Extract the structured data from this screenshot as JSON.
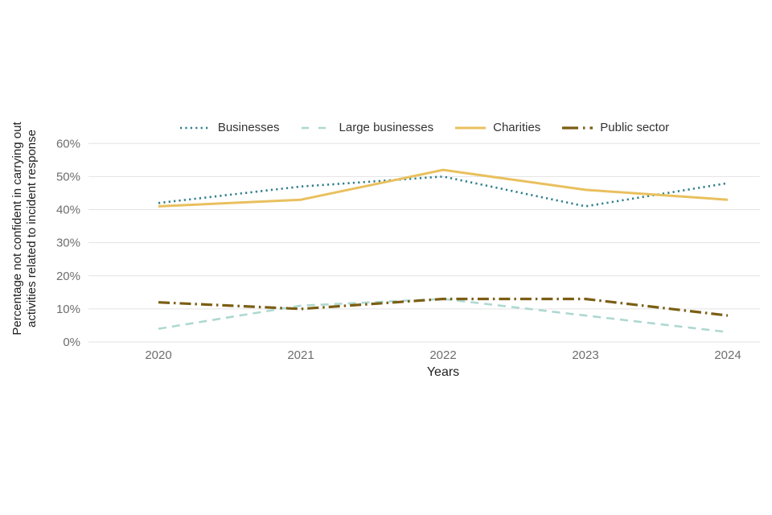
{
  "chart_data": {
    "type": "line",
    "xlabel": "Years",
    "ylabel": "Percentage not confident in carrying out activities related to incident response",
    "ylabel_lines": [
      "Percentage not confident in carrying out",
      "activities related to incident response"
    ],
    "x_categories": [
      "2020",
      "2021",
      "2022",
      "2023",
      "2024"
    ],
    "ylim": [
      0,
      60
    ],
    "ytick_step": 10,
    "ytick_suffix": "%",
    "grid": "horizontal",
    "legend_position": "top-center",
    "series": [
      {
        "name": "Businesses",
        "values": [
          42,
          47,
          50,
          41,
          48
        ],
        "color": "#2e7e8e",
        "style": "dotted"
      },
      {
        "name": "Large businesses",
        "values": [
          4,
          11,
          13,
          8,
          3
        ],
        "color": "#aed8d1",
        "style": "dashed"
      },
      {
        "name": "Charities",
        "values": [
          41,
          43,
          52,
          46,
          43
        ],
        "color": "#e9c05e",
        "style": "solid"
      },
      {
        "name": "Public sector",
        "values": [
          12,
          10,
          13,
          13,
          8
        ],
        "color": "#7b5e14",
        "style": "dashdot"
      }
    ],
    "colors": {
      "background": "#ffffff",
      "gridline": "#e3e3e3",
      "tick_label": "#6e6e6e",
      "axis_title": "#1f1f1f",
      "legend_text": "#333333"
    }
  }
}
